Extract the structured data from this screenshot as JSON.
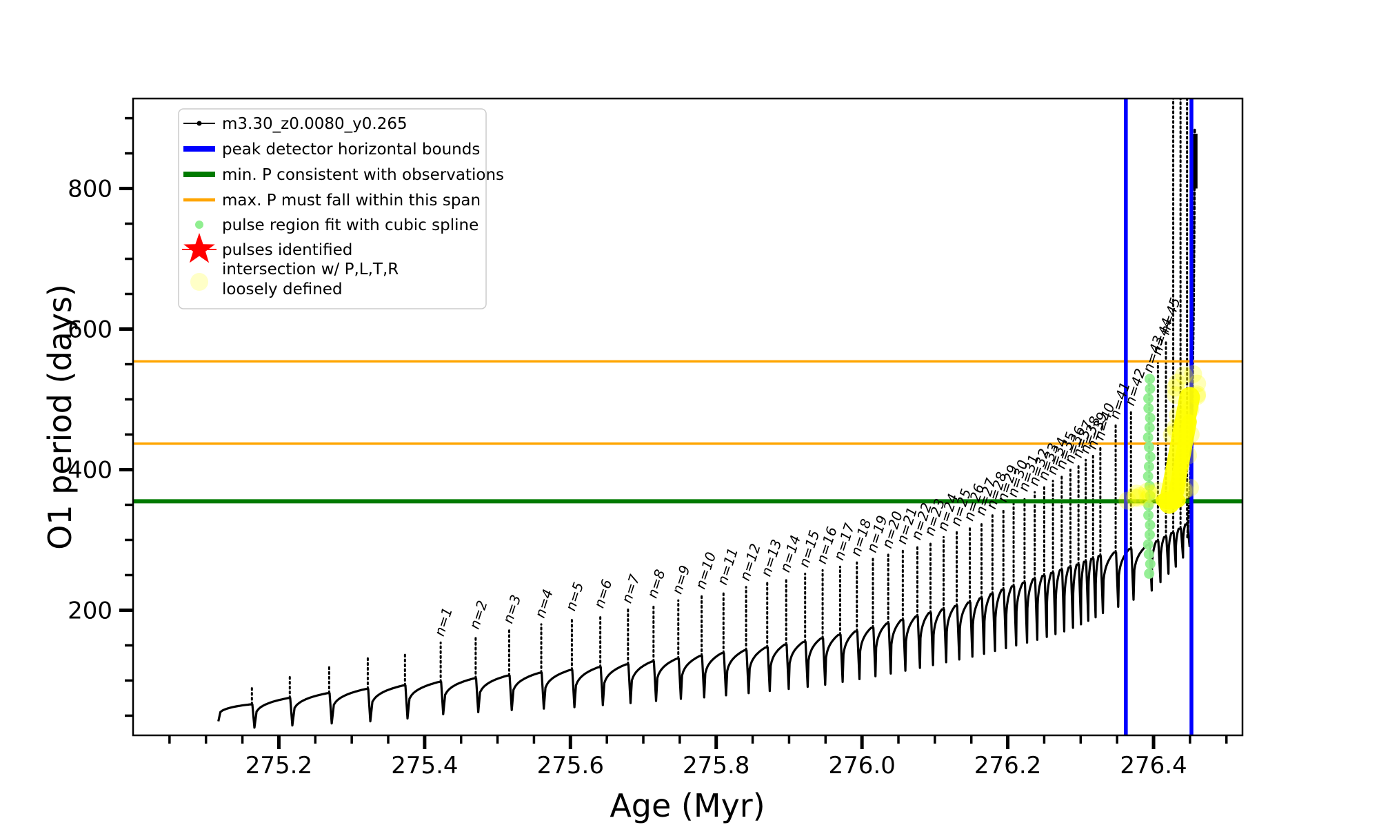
{
  "figure": {
    "background": "#ffffff",
    "xlabel": "Age (Myr)",
    "ylabel": "O1 period (days)",
    "x_major_ticks": [
      275.2,
      275.4,
      275.6,
      275.8,
      276.0,
      276.2,
      276.4
    ],
    "x_minor_tick_step": 0.05,
    "y_major_ticks": [
      200,
      400,
      600,
      800
    ],
    "y_minor_tick_step": 50,
    "colors": {
      "track": "#000000",
      "peak_bounds": "#0000ff",
      "min_P": "#007a00",
      "max_P_span": "#ffa500",
      "spline_dots": "#90ee90",
      "pulse_star": "#ff0000",
      "intersection": "#ffff00"
    }
  },
  "legend": {
    "items": [
      {
        "label": "m3.30_z0.0080_y0.265",
        "marker": "line-dot",
        "color": "#000000"
      },
      {
        "label": "peak detector horizontal bounds",
        "marker": "line",
        "color": "#0000ff",
        "lw": 5
      },
      {
        "label": "min. P consistent with observations",
        "marker": "line",
        "color": "#007a00",
        "lw": 5
      },
      {
        "label": "max. P must fall within this span",
        "marker": "line",
        "color": "#ffa500",
        "lw": 3
      },
      {
        "label": "pulse region fit with cubic spline",
        "marker": "dot",
        "color": "#90ee90",
        "r": 6,
        "opacity": 1
      },
      {
        "label": "pulses identified",
        "marker": "star",
        "color": "#ff0000"
      },
      {
        "label": "intersection w/ P,L,T,R",
        "label2": "loosely defined",
        "marker": "dot",
        "color": "#ffff99",
        "r": 13,
        "opacity": 0.55
      }
    ]
  },
  "chart_data": {
    "type": "line",
    "title": "",
    "xlabel": "Age (Myr)",
    "ylabel": "O1 period (days)",
    "xlim": [
      275.0,
      276.522
    ],
    "ylim": [
      22,
      928
    ],
    "grid": false,
    "legend_position": "upper-left",
    "series_label": "m3.30_z0.0080_y0.265",
    "peak_detector_bounds_age_Myr": [
      276.362,
      276.452
    ],
    "min_P_consistent_days": 355,
    "max_P_span_days": [
      437,
      554
    ],
    "track_start": {
      "age": 275.117,
      "period": 42
    },
    "pulse_format": "[n_label_or_null, age_Myr, spike_peak_days, post_pulse_min_days, pre_pulse_plateau_days]",
    "pulses": [
      [
        null,
        275.163,
        91,
        33,
        66
      ],
      [
        null,
        275.215,
        106,
        36,
        75
      ],
      [
        null,
        275.269,
        123,
        39,
        82
      ],
      [
        null,
        275.322,
        134,
        42,
        88
      ],
      [
        null,
        275.373,
        140,
        46,
        93
      ],
      [
        1,
        275.422,
        154,
        52,
        98
      ],
      [
        2,
        275.47,
        164,
        55,
        103
      ],
      [
        3,
        275.516,
        172,
        58,
        107
      ],
      [
        4,
        275.56,
        180,
        60,
        111
      ],
      [
        5,
        275.602,
        190,
        62,
        115
      ],
      [
        6,
        275.641,
        194,
        65,
        119
      ],
      [
        7,
        275.679,
        201,
        68,
        123
      ],
      [
        8,
        275.714,
        208,
        71,
        127
      ],
      [
        9,
        275.748,
        214,
        74,
        131
      ],
      [
        10,
        275.78,
        221,
        76,
        135
      ],
      [
        11,
        275.81,
        227,
        79,
        139
      ],
      [
        12,
        275.841,
        233,
        82,
        143
      ],
      [
        13,
        275.87,
        239,
        85,
        147
      ],
      [
        14,
        275.896,
        245,
        88,
        151
      ],
      [
        15,
        275.922,
        252,
        91,
        155
      ],
      [
        16,
        275.946,
        257,
        94,
        160
      ],
      [
        17,
        275.97,
        262,
        98,
        165
      ],
      [
        18,
        275.993,
        268,
        102,
        170
      ],
      [
        19,
        276.015,
        273,
        106,
        175
      ],
      [
        20,
        276.036,
        279,
        110,
        181
      ],
      [
        21,
        276.056,
        285,
        114,
        186
      ],
      [
        22,
        276.076,
        291,
        118,
        191
      ],
      [
        23,
        276.094,
        297,
        122,
        196
      ],
      [
        24,
        276.112,
        304,
        126,
        201
      ],
      [
        25,
        276.13,
        311,
        130,
        206
      ],
      [
        26,
        276.148,
        318,
        134,
        211
      ],
      [
        27,
        276.164,
        326,
        138,
        217
      ],
      [
        28,
        276.179,
        335,
        142,
        223
      ],
      [
        29,
        276.194,
        345,
        146,
        229
      ],
      [
        30,
        276.208,
        352,
        150,
        234
      ],
      [
        31,
        276.223,
        360,
        154,
        239
      ],
      [
        32,
        276.237,
        368,
        158,
        244
      ],
      [
        33,
        276.25,
        376,
        162,
        249
      ],
      [
        34,
        276.262,
        384,
        166,
        253
      ],
      [
        35,
        276.274,
        392,
        170,
        257
      ],
      [
        36,
        276.286,
        400,
        175,
        261
      ],
      [
        37,
        276.297,
        408,
        180,
        265
      ],
      [
        38,
        276.307,
        414,
        185,
        269
      ],
      [
        39,
        276.317,
        420,
        190,
        273
      ],
      [
        40,
        276.327,
        433,
        196,
        277
      ],
      [
        41,
        276.348,
        463,
        205,
        282
      ],
      [
        42,
        276.369,
        482,
        215,
        287
      ],
      [
        43,
        276.394,
        529,
        228,
        293
      ],
      [
        44,
        276.406,
        554,
        240,
        298
      ],
      [
        45,
        276.417,
        583,
        252,
        304
      ],
      [
        null,
        276.427,
        935,
        262,
        310
      ],
      [
        null,
        276.437,
        935,
        275,
        316
      ],
      [
        null,
        276.446,
        935,
        290,
        322
      ]
    ],
    "tail_track": {
      "points": [
        [
          276.4465,
          304
        ],
        [
          276.45,
          380
        ],
        [
          276.453,
          490
        ],
        [
          276.455,
          630
        ],
        [
          276.456,
          760
        ],
        [
          276.4565,
          885
        ]
      ],
      "thick_segment": [
        [
          276.457,
          800
        ],
        [
          276.457,
          878
        ]
      ]
    },
    "spline_fit_region": {
      "age": 276.394,
      "period_range_days": [
        252,
        529
      ],
      "n_dots": 21
    },
    "intersection_region": {
      "age_range_Myr": [
        276.36,
        276.462
      ],
      "period_range_days": [
        352,
        553
      ]
    }
  }
}
